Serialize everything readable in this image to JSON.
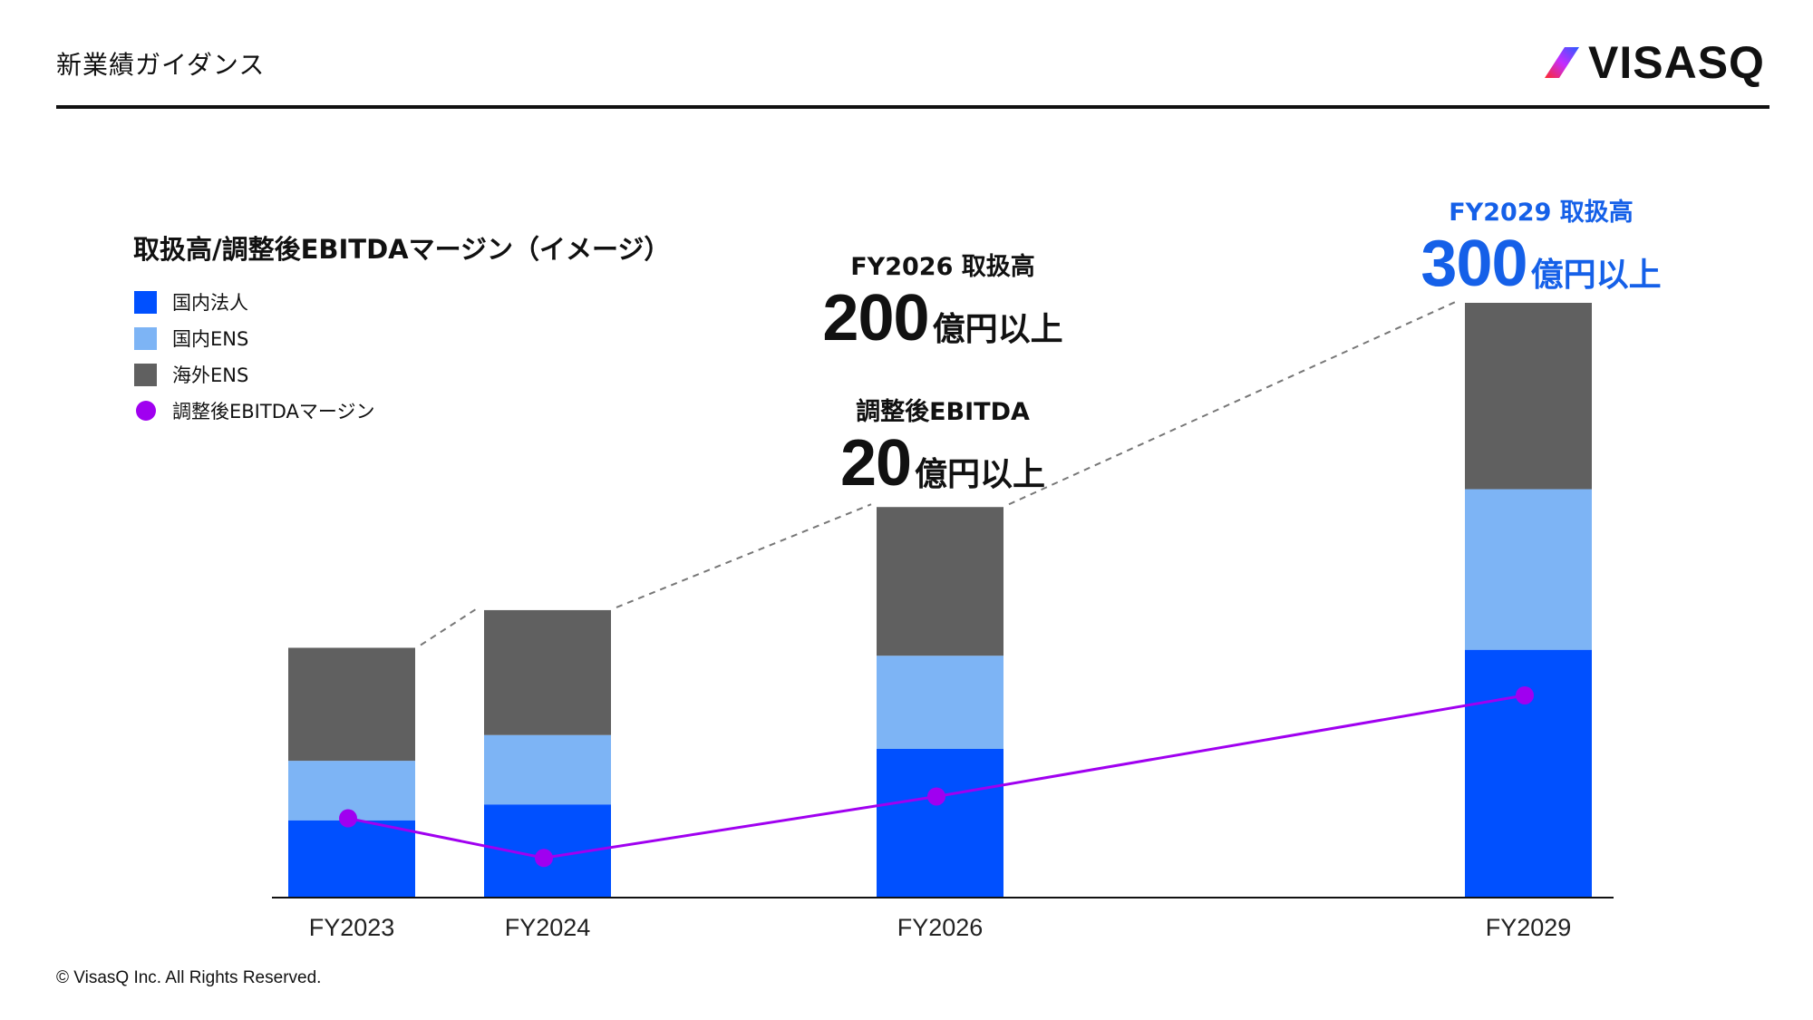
{
  "header": {
    "title": "新業績ガイダンス",
    "logo_text": "VISASQ"
  },
  "footer": {
    "copyright": "© VisasQ Inc. All Rights Reserved."
  },
  "annotations": {
    "fy2026_gmv": {
      "label": "FY2026 取扱高",
      "number": "200",
      "unit": "億円以上"
    },
    "fy2026_ebitda": {
      "label": "調整後EBITDA",
      "number": "20",
      "unit": "億円以上"
    },
    "fy2029_gmv": {
      "label": "FY2029 取扱高",
      "number": "300",
      "unit": "億円以上"
    }
  },
  "chart_data": {
    "type": "bar",
    "title": "取扱高/調整後EBITDAマージン（イメージ）",
    "categories": [
      "FY2023",
      "FY2024",
      "FY2026",
      "FY2029"
    ],
    "stacked": true,
    "ylim": [
      0,
      300
    ],
    "gridlines": false,
    "legend_position": "top-left",
    "series": [
      {
        "name": "国内法人",
        "type": "bar",
        "color": "#0050FF",
        "values": [
          39,
          47,
          75,
          125
        ]
      },
      {
        "name": "国内ENS",
        "type": "bar",
        "color": "#7DB4F5",
        "values": [
          30,
          35,
          47,
          81
        ]
      },
      {
        "name": "海外ENS",
        "type": "bar",
        "color": "#606060",
        "values": [
          57,
          63,
          75,
          94
        ]
      },
      {
        "name": "調整後EBITDAマージン",
        "type": "line",
        "color": "#A000F0",
        "values": [
          40,
          20,
          51,
          102
        ]
      }
    ],
    "annotations": [
      "FY2026 取扱高 200億円以上",
      "調整後EBITDA 20億円以上",
      "FY2029 取扱高 300億円以上"
    ]
  }
}
